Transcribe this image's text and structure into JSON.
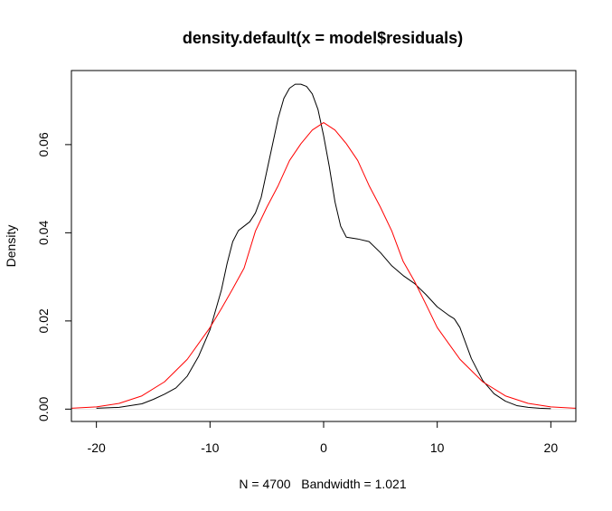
{
  "chart_data": {
    "type": "line",
    "title": "density.default(x = model$residuals)",
    "xlabel": "N = 4700   Bandwidth = 1.021",
    "ylabel": "Density",
    "xlim": [
      -22.2,
      22.2
    ],
    "ylim": [
      -0.0028,
      0.0768
    ],
    "x_ticks": [
      -20,
      -10,
      0,
      10,
      20
    ],
    "y_ticks": [
      0.0,
      0.02,
      0.04,
      0.06
    ],
    "x_tick_labels": [
      "-20",
      "-10",
      "0",
      "10",
      "20"
    ],
    "y_tick_labels": [
      "0.00",
      "0.02",
      "0.04",
      "0.06"
    ],
    "grid": false,
    "baseline": 0,
    "series": [
      {
        "color": "#000000",
        "x": [
          -20,
          -18,
          -16,
          -15,
          -14,
          -13,
          -12,
          -11,
          -10,
          -9,
          -8.5,
          -8,
          -7.5,
          -7,
          -6.5,
          -6,
          -5.5,
          -5,
          -4.5,
          -4,
          -3.5,
          -3,
          -2.5,
          -2,
          -1.5,
          -1,
          -0.5,
          0,
          0.5,
          1,
          1.5,
          2,
          3,
          4,
          5,
          6,
          7,
          8,
          9,
          10,
          11,
          11.5,
          12,
          13,
          14,
          15,
          16,
          17,
          18,
          19,
          20
        ],
        "y": [
          0.0002,
          0.0004,
          0.0012,
          0.0022,
          0.0034,
          0.0048,
          0.0075,
          0.012,
          0.018,
          0.027,
          0.033,
          0.038,
          0.0405,
          0.0415,
          0.0425,
          0.0445,
          0.048,
          0.054,
          0.06,
          0.066,
          0.0705,
          0.0728,
          0.0737,
          0.0737,
          0.0732,
          0.0715,
          0.068,
          0.062,
          0.055,
          0.047,
          0.0415,
          0.039,
          0.0386,
          0.038,
          0.0355,
          0.0325,
          0.0303,
          0.0285,
          0.026,
          0.0232,
          0.0213,
          0.0205,
          0.0185,
          0.0115,
          0.0065,
          0.0035,
          0.0018,
          0.0008,
          0.0004,
          0.0002,
          0.0001
        ]
      },
      {
        "color": "#ff0000",
        "x": [
          -22.2,
          -20,
          -18,
          -16,
          -14,
          -12,
          -10,
          -9,
          -8,
          -7,
          -6,
          -5,
          -4,
          -3,
          -2,
          -1,
          0,
          1,
          2,
          3,
          4,
          5,
          6,
          7,
          8,
          9,
          10,
          12,
          14,
          16,
          18,
          20,
          22.2
        ],
        "y": [
          0.0002,
          0.0005,
          0.0013,
          0.003,
          0.0062,
          0.0113,
          0.0185,
          0.0228,
          0.0273,
          0.032,
          0.0404,
          0.0458,
          0.0507,
          0.0564,
          0.0602,
          0.0633,
          0.065,
          0.0633,
          0.0602,
          0.0564,
          0.0507,
          0.0458,
          0.0404,
          0.0335,
          0.029,
          0.0238,
          0.0185,
          0.0113,
          0.0062,
          0.003,
          0.0013,
          0.0005,
          0.0002
        ]
      }
    ]
  }
}
